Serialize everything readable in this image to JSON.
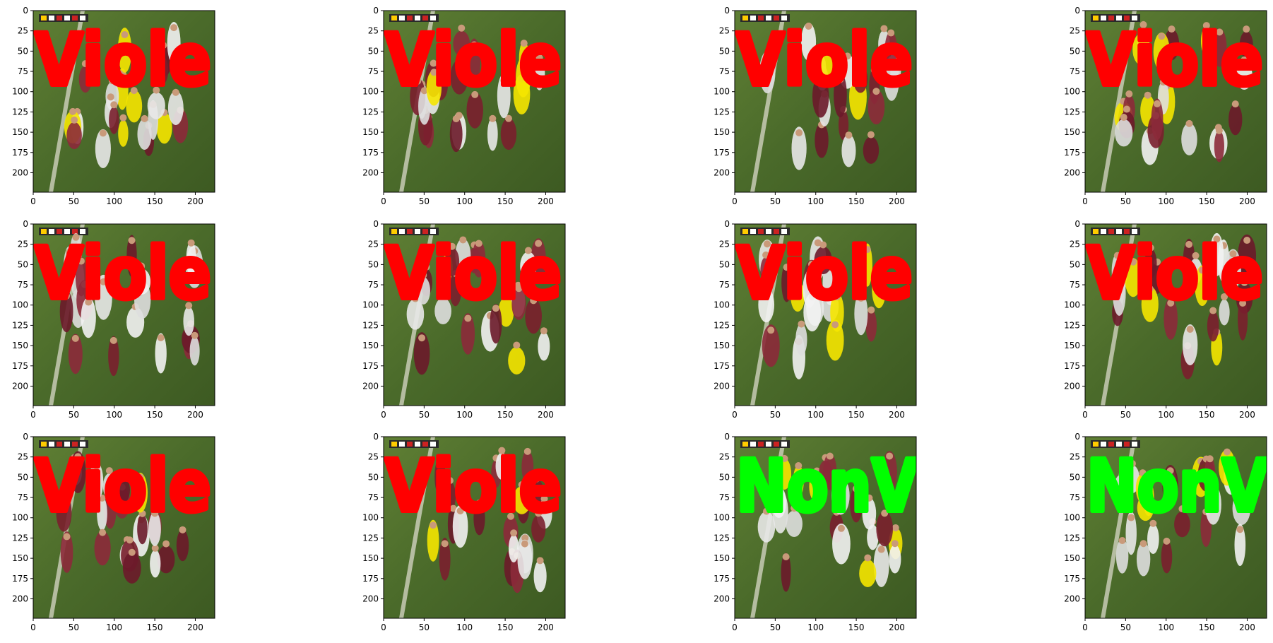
{
  "colors": {
    "violence_label": "#ff0000",
    "nonviolence_label": "#00ff00",
    "field_dark": "#3f5a24",
    "field_light": "#6b8a3a",
    "axis": "#000000",
    "background": "#ffffff"
  },
  "chart_data": [
    {
      "type": "image",
      "row": 1,
      "col": 1,
      "label": "Viole",
      "label_color": "violence",
      "xlim": [
        0,
        224
      ],
      "ylim": [
        224,
        0
      ],
      "xticks": [
        0,
        50,
        100,
        150,
        200
      ],
      "yticks": [
        0,
        25,
        50,
        75,
        100,
        125,
        150,
        175,
        200
      ]
    },
    {
      "type": "image",
      "row": 1,
      "col": 2,
      "label": "Viole",
      "label_color": "violence",
      "xlim": [
        0,
        224
      ],
      "ylim": [
        224,
        0
      ],
      "xticks": [
        0,
        50,
        100,
        150,
        200
      ],
      "yticks": [
        0,
        25,
        50,
        75,
        100,
        125,
        150,
        175,
        200
      ]
    },
    {
      "type": "image",
      "row": 1,
      "col": 3,
      "label": "Viole",
      "label_color": "violence",
      "xlim": [
        0,
        224
      ],
      "ylim": [
        224,
        0
      ],
      "xticks": [
        0,
        50,
        100,
        150,
        200
      ],
      "yticks": [
        0,
        25,
        50,
        75,
        100,
        125,
        150,
        175,
        200
      ]
    },
    {
      "type": "image",
      "row": 1,
      "col": 4,
      "label": "Viole",
      "label_color": "violence",
      "xlim": [
        0,
        224
      ],
      "ylim": [
        224,
        0
      ],
      "xticks": [
        0,
        50,
        100,
        150,
        200
      ],
      "yticks": [
        0,
        25,
        50,
        75,
        100,
        125,
        150,
        175,
        200
      ]
    },
    {
      "type": "image",
      "row": 2,
      "col": 1,
      "label": "Viole",
      "label_color": "violence",
      "xlim": [
        0,
        224
      ],
      "ylim": [
        224,
        0
      ],
      "xticks": [
        0,
        50,
        100,
        150,
        200
      ],
      "yticks": [
        0,
        25,
        50,
        75,
        100,
        125,
        150,
        175,
        200
      ]
    },
    {
      "type": "image",
      "row": 2,
      "col": 2,
      "label": "Viole",
      "label_color": "violence",
      "xlim": [
        0,
        224
      ],
      "ylim": [
        224,
        0
      ],
      "xticks": [
        0,
        50,
        100,
        150,
        200
      ],
      "yticks": [
        0,
        25,
        50,
        75,
        100,
        125,
        150,
        175,
        200
      ]
    },
    {
      "type": "image",
      "row": 2,
      "col": 3,
      "label": "Viole",
      "label_color": "violence",
      "xlim": [
        0,
        224
      ],
      "ylim": [
        224,
        0
      ],
      "xticks": [
        0,
        50,
        100,
        150,
        200
      ],
      "yticks": [
        0,
        25,
        50,
        75,
        100,
        125,
        150,
        175,
        200
      ]
    },
    {
      "type": "image",
      "row": 2,
      "col": 4,
      "label": "Viole",
      "label_color": "violence",
      "xlim": [
        0,
        224
      ],
      "ylim": [
        224,
        0
      ],
      "xticks": [
        0,
        50,
        100,
        150,
        200
      ],
      "yticks": [
        0,
        25,
        50,
        75,
        100,
        125,
        150,
        175,
        200
      ]
    },
    {
      "type": "image",
      "row": 3,
      "col": 1,
      "label": "Viole",
      "label_color": "violence",
      "xlim": [
        0,
        224
      ],
      "ylim": [
        224,
        0
      ],
      "xticks": [
        0,
        50,
        100,
        150,
        200
      ],
      "yticks": [
        0,
        25,
        50,
        75,
        100,
        125,
        150,
        175,
        200
      ]
    },
    {
      "type": "image",
      "row": 3,
      "col": 2,
      "label": "Viole",
      "label_color": "violence",
      "xlim": [
        0,
        224
      ],
      "ylim": [
        224,
        0
      ],
      "xticks": [
        0,
        50,
        100,
        150,
        200
      ],
      "yticks": [
        0,
        25,
        50,
        75,
        100,
        125,
        150,
        175,
        200
      ]
    },
    {
      "type": "image",
      "row": 3,
      "col": 3,
      "label": "NonV",
      "label_color": "nonviolence",
      "xlim": [
        0,
        224
      ],
      "ylim": [
        224,
        0
      ],
      "xticks": [
        0,
        50,
        100,
        150,
        200
      ],
      "yticks": [
        0,
        25,
        50,
        75,
        100,
        125,
        150,
        175,
        200
      ]
    },
    {
      "type": "image",
      "row": 3,
      "col": 4,
      "label": "NonV",
      "label_color": "nonviolence",
      "xlim": [
        0,
        224
      ],
      "ylim": [
        224,
        0
      ],
      "xticks": [
        0,
        50,
        100,
        150,
        200
      ],
      "yticks": [
        0,
        25,
        50,
        75,
        100,
        125,
        150,
        175,
        200
      ]
    }
  ]
}
